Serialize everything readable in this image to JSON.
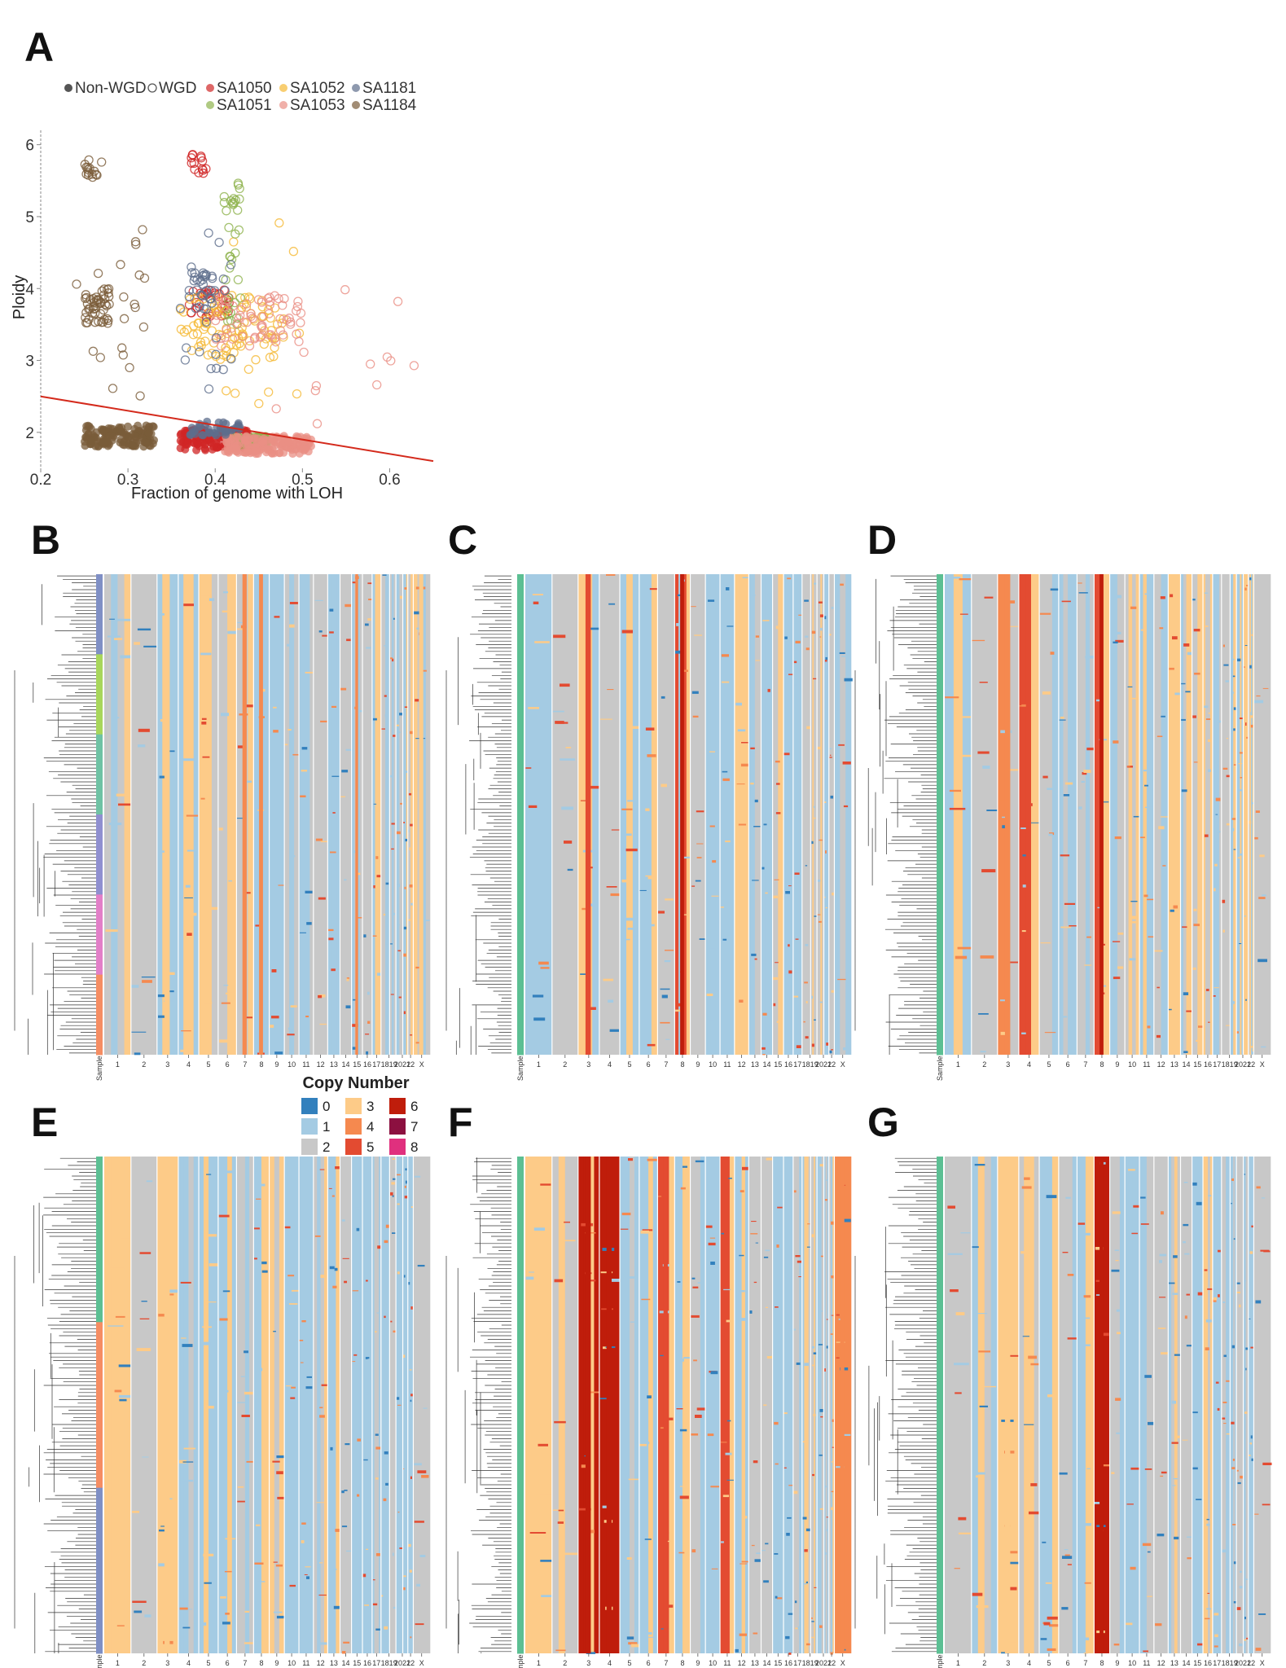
{
  "figure": {
    "panel_labels": [
      "A",
      "B",
      "C",
      "D",
      "E",
      "F",
      "G"
    ],
    "colors": {
      "regression_line": "#d42a1c",
      "tree": "#333333",
      "heatmap_bg": "#c8c8c8"
    }
  },
  "chart_data": [
    {
      "panel": "A",
      "type": "scatter",
      "title": "",
      "xlabel": "Fraction of genome with LOH",
      "ylabel": "Ploidy",
      "xlim": [
        0.2,
        0.65
      ],
      "ylim": [
        1.5,
        6.2
      ],
      "xticks": [
        0.2,
        0.3,
        0.4,
        0.5,
        0.6
      ],
      "yticks": [
        2,
        3,
        4,
        5,
        6
      ],
      "grid": false,
      "legend_position": "top-left",
      "legend": [
        {
          "name": "Non-WGD",
          "style": "filled",
          "color": "#555555"
        },
        {
          "name": "WGD",
          "style": "hollow",
          "color": "#555555"
        },
        {
          "name": "SA1050",
          "color": "#d02626"
        },
        {
          "name": "SA1052",
          "color": "#f5b935"
        },
        {
          "name": "SA1181",
          "color": "#5e6e8c"
        },
        {
          "name": "SA1051",
          "color": "#8fb34e"
        },
        {
          "name": "SA1053",
          "color": "#ea8f84"
        },
        {
          "name": "SA1184",
          "color": "#7a5c3a"
        }
      ],
      "regression_line": {
        "x": [
          0.2,
          0.65
        ],
        "y": [
          2.5,
          1.6
        ]
      },
      "clusters": [
        {
          "series": "SA1184",
          "wgd": false,
          "x": [
            0.25,
            0.33
          ],
          "y": [
            1.8,
            2.1
          ],
          "n": 140
        },
        {
          "series": "SA1184",
          "wgd": true,
          "x": [
            0.25,
            0.28
          ],
          "y": [
            3.5,
            4.0
          ],
          "n": 45
        },
        {
          "series": "SA1184",
          "wgd": true,
          "x": [
            0.25,
            0.27
          ],
          "y": [
            5.5,
            5.8
          ],
          "n": 15
        },
        {
          "series": "SA1184",
          "wgd": true,
          "x": [
            0.24,
            0.32
          ],
          "y": [
            2.4,
            5.4
          ],
          "n": 22
        },
        {
          "series": "SA1050",
          "wgd": false,
          "x": [
            0.36,
            0.44
          ],
          "y": [
            1.75,
            2.05
          ],
          "n": 120
        },
        {
          "series": "SA1050",
          "wgd": true,
          "x": [
            0.37,
            0.39
          ],
          "y": [
            5.6,
            5.9
          ],
          "n": 14
        },
        {
          "series": "SA1050",
          "wgd": true,
          "x": [
            0.37,
            0.42
          ],
          "y": [
            3.6,
            4.0
          ],
          "n": 35
        },
        {
          "series": "SA1052",
          "wgd": true,
          "x": [
            0.36,
            0.48
          ],
          "y": [
            3.0,
            3.9
          ],
          "n": 90
        },
        {
          "series": "SA1052",
          "wgd": true,
          "x": [
            0.4,
            0.5
          ],
          "y": [
            2.4,
            5.3
          ],
          "n": 18
        },
        {
          "series": "SA1051",
          "wgd": false,
          "x": [
            0.42,
            0.46
          ],
          "y": [
            1.8,
            1.95
          ],
          "n": 45
        },
        {
          "series": "SA1051",
          "wgd": true,
          "x": [
            0.41,
            0.43
          ],
          "y": [
            3.5,
            5.5
          ],
          "n": 35
        },
        {
          "series": "SA1053",
          "wgd": false,
          "x": [
            0.41,
            0.51
          ],
          "y": [
            1.7,
            1.95
          ],
          "n": 150
        },
        {
          "series": "SA1053",
          "wgd": true,
          "x": [
            0.4,
            0.5
          ],
          "y": [
            3.2,
            3.9
          ],
          "n": 60
        },
        {
          "series": "SA1053",
          "wgd": true,
          "x": [
            0.45,
            0.64
          ],
          "y": [
            1.9,
            4.3
          ],
          "n": 15
        },
        {
          "series": "SA1181",
          "wgd": false,
          "x": [
            0.37,
            0.43
          ],
          "y": [
            1.95,
            2.15
          ],
          "n": 40
        },
        {
          "series": "SA1181",
          "wgd": true,
          "x": [
            0.37,
            0.4
          ],
          "y": [
            3.7,
            4.3
          ],
          "n": 28
        },
        {
          "series": "SA1181",
          "wgd": true,
          "x": [
            0.36,
            0.42
          ],
          "y": [
            2.5,
            4.8
          ],
          "n": 20
        }
      ]
    },
    {
      "panel": "B-G",
      "type": "heatmap",
      "title": "",
      "legend_title": "Copy Number",
      "legend": [
        {
          "cn": "0",
          "color": "#3280bd"
        },
        {
          "cn": "1",
          "color": "#a4cbe3"
        },
        {
          "cn": "2",
          "color": "#c8c8c8"
        },
        {
          "cn": "3",
          "color": "#fdcb88"
        },
        {
          "cn": "4",
          "color": "#f5894f"
        },
        {
          "cn": "5",
          "color": "#e34b31"
        },
        {
          "cn": "6",
          "color": "#bf1d0b"
        },
        {
          "cn": "7",
          "color": "#8c1040"
        },
        {
          "cn": "8",
          "color": "#e0307e"
        }
      ],
      "row_annotation_label": "Sample",
      "chromosomes": [
        "1",
        "2",
        "3",
        "4",
        "5",
        "6",
        "7",
        "8",
        "9",
        "10",
        "11",
        "12",
        "13",
        "14",
        "15",
        "16",
        "17",
        "18",
        "19",
        "20",
        "21",
        "22",
        "X"
      ],
      "chromosome_tick_labels": [
        "1",
        "2",
        "3",
        "4",
        "5",
        "6",
        "7",
        "8",
        "9",
        "10",
        "11",
        "12",
        "13",
        "14",
        "15",
        "16",
        "17",
        "1819",
        "2021",
        "22",
        "X"
      ],
      "panels": [
        {
          "label": "B",
          "sample_colors": [
            "#7f8fc5",
            "#a8d65b",
            "#6fc2a4",
            "#8f8fd0",
            "#e27fc8",
            "#f58d63"
          ],
          "base": [
            2,
            2,
            1,
            1,
            3,
            2,
            2,
            1,
            1,
            2,
            1,
            2,
            1,
            2,
            1,
            2,
            1,
            2,
            2,
            1,
            1,
            2,
            3
          ],
          "stripes": [
            {
              "chr": "3",
              "cn": "3"
            },
            {
              "chr": "7",
              "cn": "4"
            },
            {
              "chr": "8",
              "cn": "4"
            },
            {
              "chr": "15",
              "cn": "4"
            },
            {
              "chr": "X",
              "cn": "3"
            }
          ]
        },
        {
          "label": "C",
          "sample_colors": [
            "#5cbf93"
          ],
          "base": [
            1,
            2,
            3,
            2,
            1,
            1,
            2,
            5,
            2,
            1,
            1,
            3,
            1,
            1,
            2,
            1,
            1,
            2,
            2,
            2,
            1,
            2,
            1
          ],
          "stripes": [
            {
              "chr": "3",
              "cn": "5"
            },
            {
              "chr": "8",
              "cn": "6"
            }
          ]
        },
        {
          "label": "D",
          "sample_colors": [
            "#5cbf93"
          ],
          "base": [
            1,
            2,
            4,
            5,
            2,
            1,
            2,
            5,
            1,
            2,
            1,
            2,
            3,
            1,
            2,
            3,
            1,
            2,
            1,
            1,
            3,
            2,
            2
          ],
          "stripes": [
            {
              "chr": "3",
              "cn": "4"
            },
            {
              "chr": "4",
              "cn": "5"
            },
            {
              "chr": "8",
              "cn": "6"
            }
          ]
        },
        {
          "label": "E",
          "sample_colors": [
            "#5cbf93",
            "#f58d63",
            "#7f8fc5"
          ],
          "base": [
            3,
            2,
            3,
            1,
            1,
            1,
            2,
            1,
            3,
            1,
            1,
            2,
            1,
            2,
            1,
            1,
            1,
            1,
            2,
            1,
            1,
            1,
            2
          ],
          "stripes": [
            {
              "chr": "3",
              "cn": "3"
            }
          ]
        },
        {
          "label": "F",
          "sample_colors": [
            "#5cbf93"
          ],
          "base": [
            3,
            2,
            6,
            6,
            1,
            1,
            5,
            1,
            2,
            1,
            5,
            1,
            2,
            2,
            1,
            1,
            2,
            1,
            2,
            1,
            1,
            2,
            4
          ],
          "stripes": [
            {
              "chr": "3",
              "cn": "6"
            },
            {
              "chr": "4",
              "cn": "6"
            },
            {
              "chr": "7",
              "cn": "5"
            },
            {
              "chr": "X",
              "cn": "4"
            }
          ]
        },
        {
          "label": "G",
          "sample_colors": [
            "#5cbf93"
          ],
          "base": [
            2,
            1,
            3,
            2,
            1,
            2,
            1,
            6,
            2,
            1,
            1,
            2,
            1,
            2,
            1,
            3,
            1,
            2,
            1,
            2,
            1,
            1,
            2
          ],
          "stripes": [
            {
              "chr": "3",
              "cn": "3"
            },
            {
              "chr": "8",
              "cn": "6"
            }
          ]
        }
      ]
    }
  ]
}
